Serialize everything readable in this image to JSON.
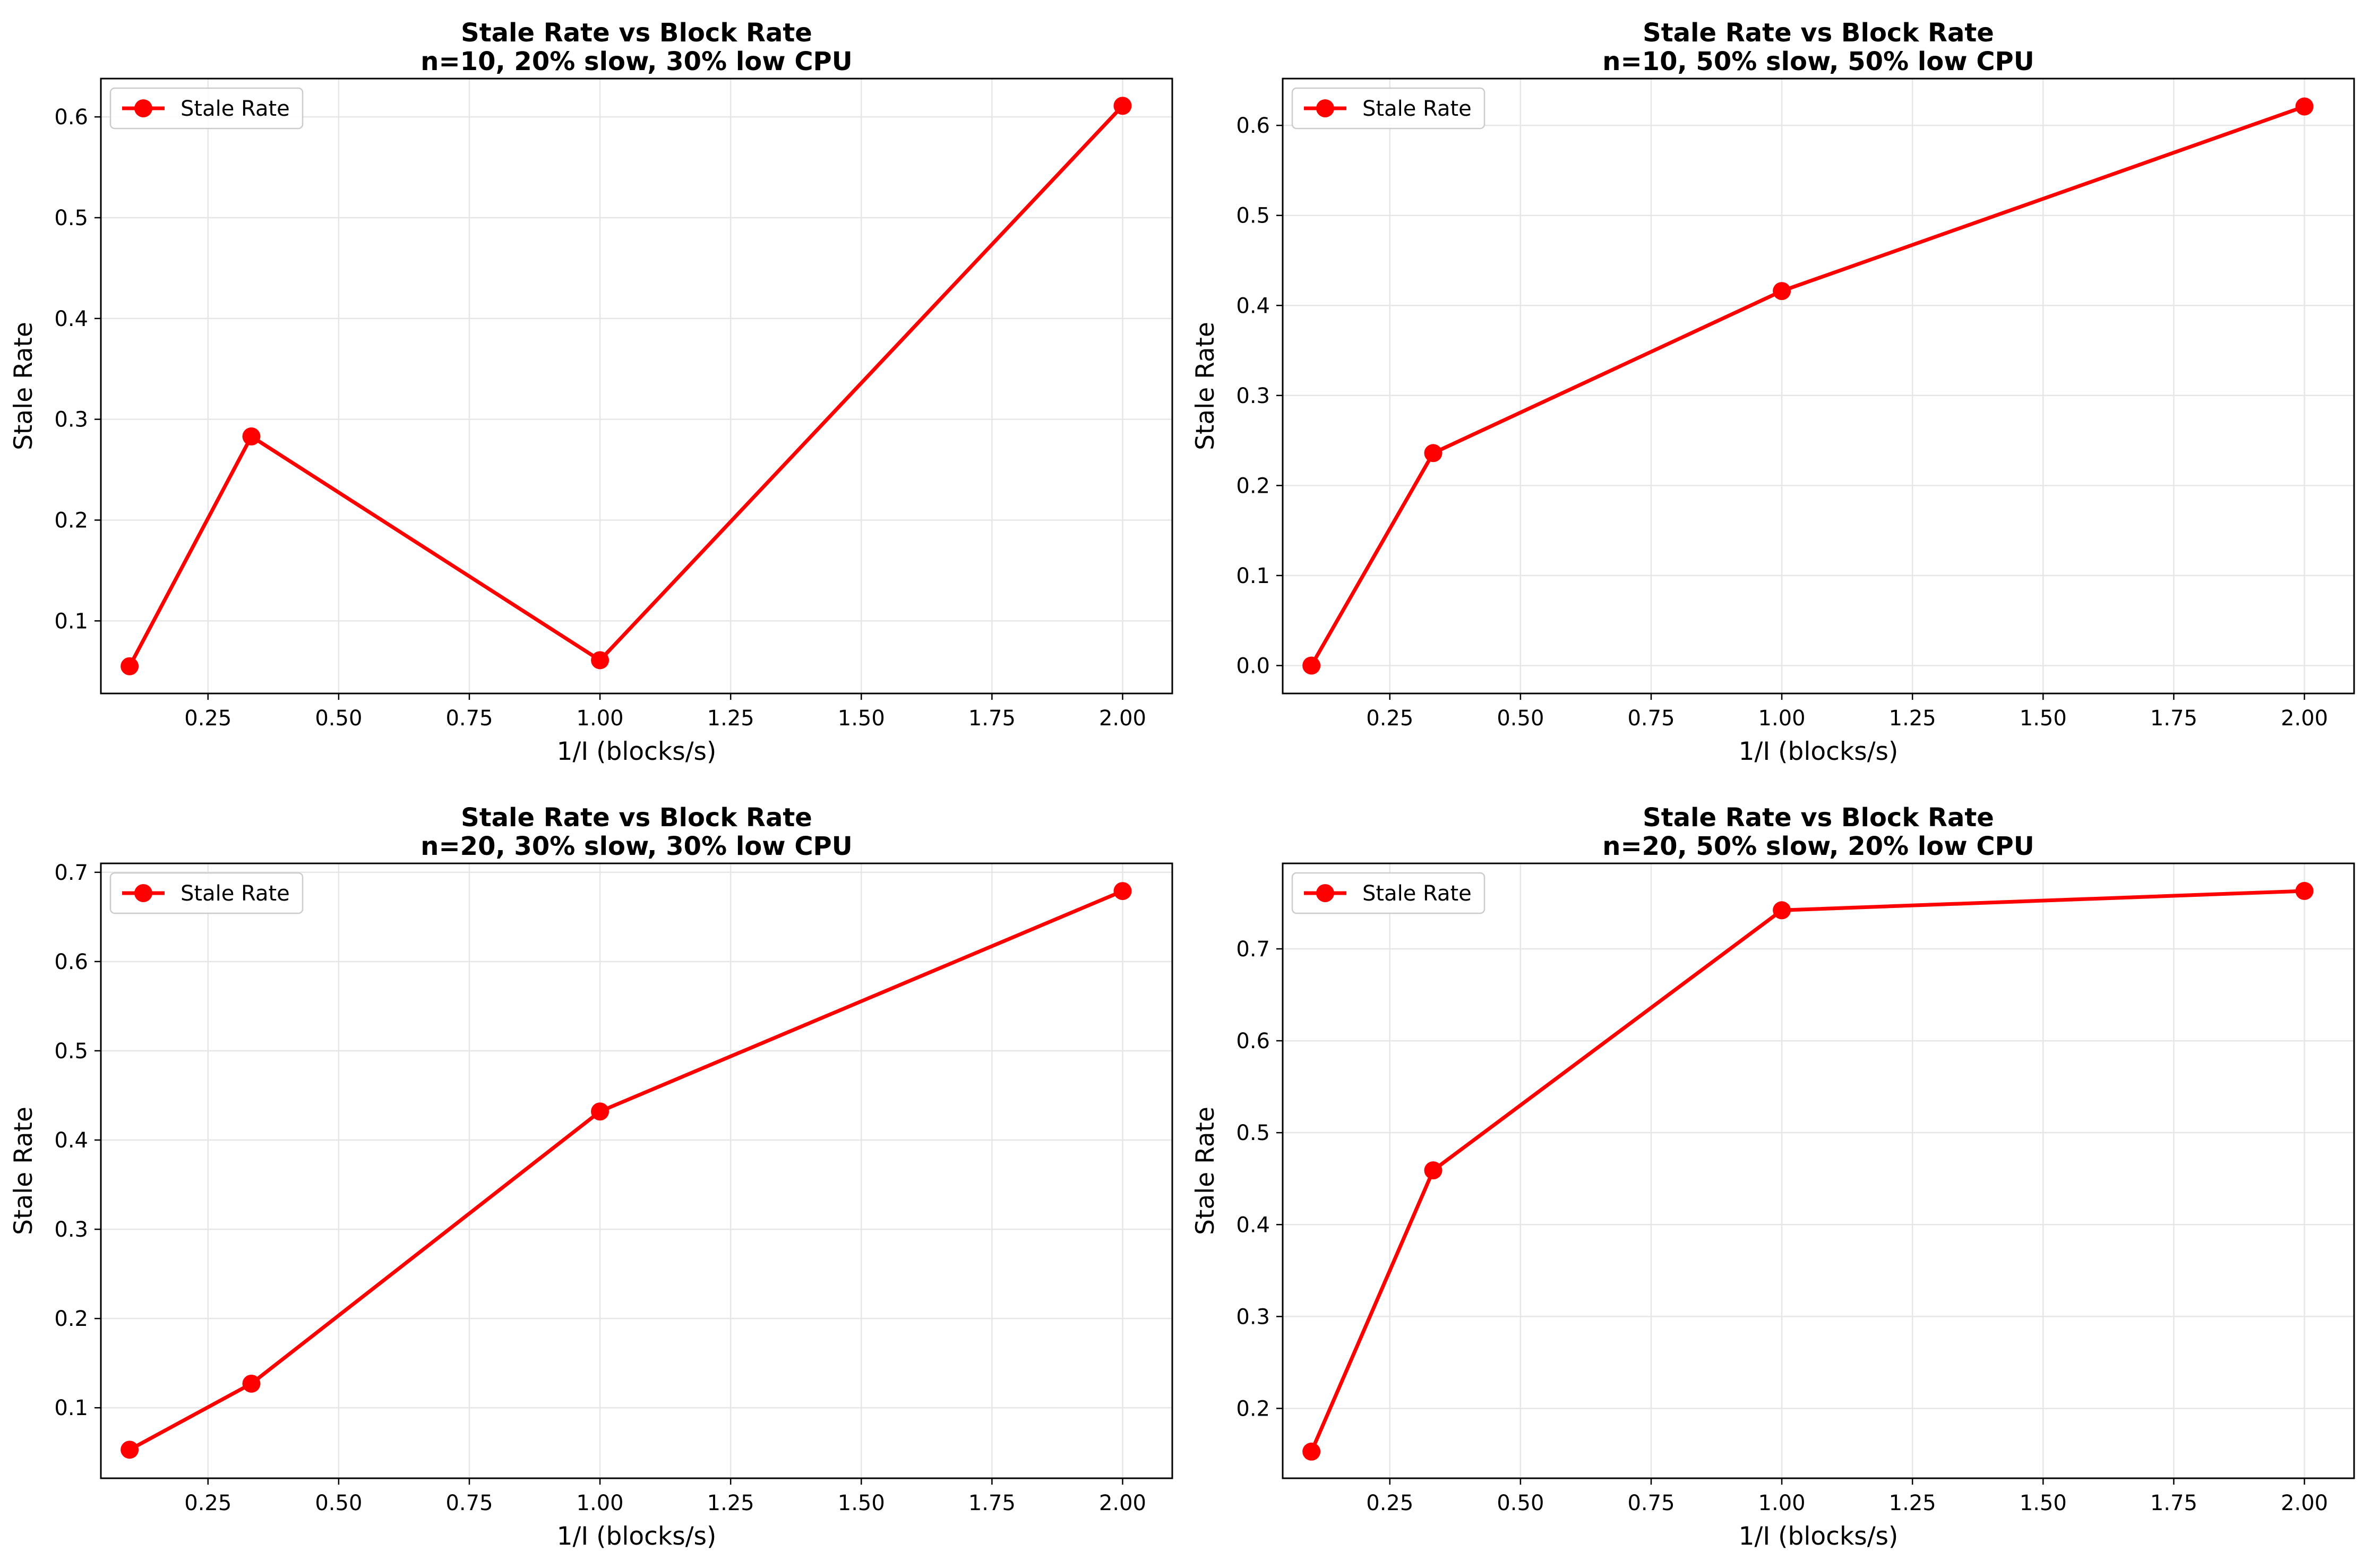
{
  "chart_data": [
    {
      "type": "line",
      "title": "Stale Rate vs Block Rate",
      "subtitle": "n=10, 20% slow, 30% low CPU",
      "xlabel": "1/I (blocks/s)",
      "ylabel": "Stale Rate",
      "xlim": [
        0.045,
        2.095
      ],
      "ylim": [
        0.028,
        0.638
      ],
      "xticks": [
        0.25,
        0.5,
        0.75,
        1.0,
        1.25,
        1.5,
        1.75,
        2.0
      ],
      "xtick_labels": [
        "0.25",
        "0.50",
        "0.75",
        "1.00",
        "1.25",
        "1.50",
        "1.75",
        "2.00"
      ],
      "yticks": [
        0.1,
        0.2,
        0.3,
        0.4,
        0.5,
        0.6
      ],
      "ytick_labels": [
        "0.1",
        "0.2",
        "0.3",
        "0.4",
        "0.5",
        "0.6"
      ],
      "grid": true,
      "legend": "upper left",
      "series": [
        {
          "name": "Stale Rate",
          "color": "#ff0000",
          "marker": "circle",
          "x": [
            0.1,
            0.333,
            1.0,
            2.0
          ],
          "y": [
            0.055,
            0.283,
            0.061,
            0.611
          ]
        }
      ]
    },
    {
      "type": "line",
      "title": "Stale Rate vs Block Rate",
      "subtitle": "n=10, 50% slow, 50% low CPU",
      "xlabel": "1/I (blocks/s)",
      "ylabel": "Stale Rate",
      "xlim": [
        0.045,
        2.095
      ],
      "ylim": [
        -0.031,
        0.652
      ],
      "xticks": [
        0.25,
        0.5,
        0.75,
        1.0,
        1.25,
        1.5,
        1.75,
        2.0
      ],
      "xtick_labels": [
        "0.25",
        "0.50",
        "0.75",
        "1.00",
        "1.25",
        "1.50",
        "1.75",
        "2.00"
      ],
      "yticks": [
        0.0,
        0.1,
        0.2,
        0.3,
        0.4,
        0.5,
        0.6
      ],
      "ytick_labels": [
        "0.0",
        "0.1",
        "0.2",
        "0.3",
        "0.4",
        "0.5",
        "0.6"
      ],
      "grid": true,
      "legend": "upper left",
      "series": [
        {
          "name": "Stale Rate",
          "color": "#ff0000",
          "marker": "circle",
          "x": [
            0.1,
            0.333,
            1.0,
            2.0
          ],
          "y": [
            0.0,
            0.236,
            0.416,
            0.621
          ]
        }
      ]
    },
    {
      "type": "line",
      "title": "Stale Rate vs Block Rate",
      "subtitle": "n=20, 30% slow, 30% low CPU",
      "xlabel": "1/I (blocks/s)",
      "ylabel": "Stale Rate",
      "xlim": [
        0.045,
        2.095
      ],
      "ylim": [
        0.021,
        0.71
      ],
      "xticks": [
        0.25,
        0.5,
        0.75,
        1.0,
        1.25,
        1.5,
        1.75,
        2.0
      ],
      "xtick_labels": [
        "0.25",
        "0.50",
        "0.75",
        "1.00",
        "1.25",
        "1.50",
        "1.75",
        "2.00"
      ],
      "yticks": [
        0.1,
        0.2,
        0.3,
        0.4,
        0.5,
        0.6,
        0.7
      ],
      "ytick_labels": [
        "0.1",
        "0.2",
        "0.3",
        "0.4",
        "0.5",
        "0.6",
        "0.7"
      ],
      "grid": true,
      "legend": "upper left",
      "series": [
        {
          "name": "Stale Rate",
          "color": "#ff0000",
          "marker": "circle",
          "x": [
            0.1,
            0.333,
            1.0,
            2.0
          ],
          "y": [
            0.053,
            0.127,
            0.432,
            0.679
          ]
        }
      ]
    },
    {
      "type": "line",
      "title": "Stale Rate vs Block Rate",
      "subtitle": "n=20, 50% slow, 20% low CPU",
      "xlabel": "1/I (blocks/s)",
      "ylabel": "Stale Rate",
      "xlim": [
        0.045,
        2.095
      ],
      "ylim": [
        0.124,
        0.793
      ],
      "xticks": [
        0.25,
        0.5,
        0.75,
        1.0,
        1.25,
        1.5,
        1.75,
        2.0
      ],
      "xtick_labels": [
        "0.25",
        "0.50",
        "0.75",
        "1.00",
        "1.25",
        "1.50",
        "1.75",
        "2.00"
      ],
      "yticks": [
        0.2,
        0.3,
        0.4,
        0.5,
        0.6,
        0.7
      ],
      "ytick_labels": [
        "0.2",
        "0.3",
        "0.4",
        "0.5",
        "0.6",
        "0.7"
      ],
      "grid": true,
      "legend": "upper left",
      "series": [
        {
          "name": "Stale Rate",
          "color": "#ff0000",
          "marker": "circle",
          "x": [
            0.1,
            0.333,
            1.0,
            2.0
          ],
          "y": [
            0.153,
            0.459,
            0.742,
            0.763
          ]
        }
      ]
    }
  ]
}
